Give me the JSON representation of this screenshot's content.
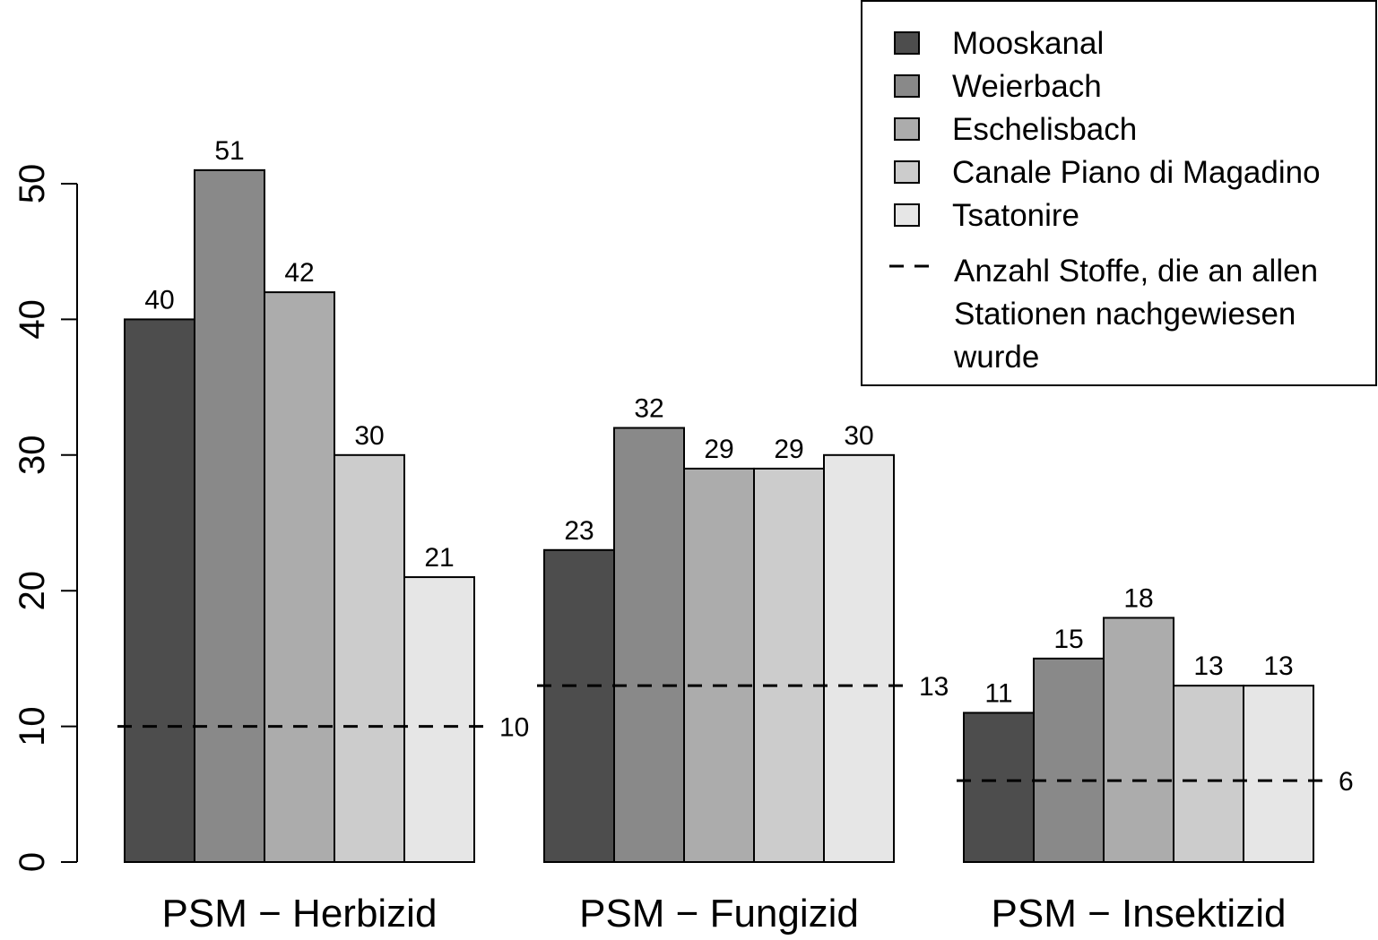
{
  "chart_data": {
    "type": "bar",
    "categories": [
      "PSM − Herbizid",
      "PSM − Fungizid",
      "PSM − Insektizid"
    ],
    "series": [
      {
        "name": "Mooskanal",
        "color": "#4d4d4d",
        "values": [
          40,
          23,
          11
        ]
      },
      {
        "name": "Weierbach",
        "color": "#898989",
        "values": [
          51,
          32,
          15
        ]
      },
      {
        "name": "Eschelisbach",
        "color": "#acacac",
        "values": [
          42,
          29,
          18
        ]
      },
      {
        "name": "Canale Piano di Magadino",
        "color": "#cccccc",
        "values": [
          30,
          29,
          13
        ]
      },
      {
        "name": "Tsatonire",
        "color": "#e6e6e6",
        "values": [
          21,
          30,
          13
        ]
      }
    ],
    "reference_lines": {
      "legend_label_lines": [
        "Anzahl Stoffe, die an allen",
        "Stationen nachgewiesen",
        " wurde"
      ],
      "values": [
        10,
        13,
        6
      ]
    },
    "yticks": [
      0,
      10,
      20,
      30,
      40,
      50
    ],
    "ylim": [
      0,
      51
    ],
    "xlabel": "",
    "ylabel": "",
    "grid": false,
    "legend_position": "top-right",
    "bar_labels": true
  }
}
